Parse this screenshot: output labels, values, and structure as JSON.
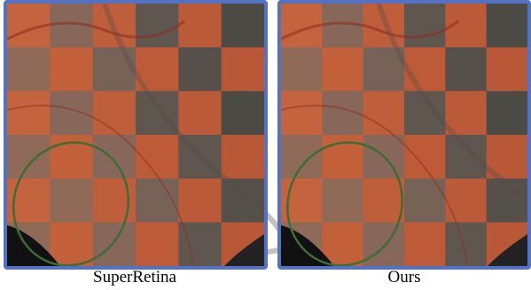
{
  "captions": [
    "SuperRetina",
    "Ours"
  ]
}
